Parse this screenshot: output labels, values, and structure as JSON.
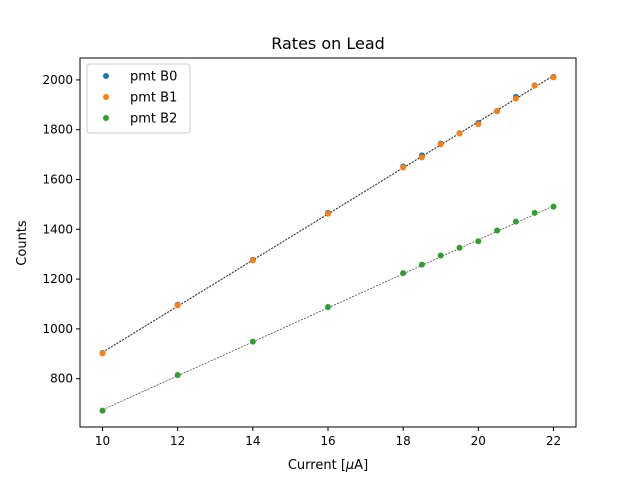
{
  "chart_data": {
    "type": "scatter",
    "title": "Rates on Lead",
    "xlabel_prefix": "Current [",
    "xlabel_mu": "μ",
    "xlabel_suffix": "A]",
    "ylabel": "Counts",
    "xlim": [
      9.4,
      22.6
    ],
    "ylim": [
      606,
      2088
    ],
    "xticks": [
      10,
      12,
      14,
      16,
      18,
      20,
      22
    ],
    "yticks": [
      800,
      1000,
      1200,
      1400,
      1600,
      1800,
      2000
    ],
    "grid": false,
    "legend_position": "top-left",
    "x": [
      10,
      12,
      14,
      16,
      18,
      18.5,
      19,
      19.5,
      20,
      20.5,
      21,
      21.5,
      22
    ],
    "series": [
      {
        "name": "pmt B0",
        "color": "#1f77b4",
        "values": [
          903,
          1097,
          1277,
          1466,
          1652,
          1697,
          1744,
          1786,
          1827,
          1875,
          1932,
          1978,
          2012
        ]
      },
      {
        "name": "pmt B1",
        "color": "#ff7f0e",
        "values": [
          901,
          1095,
          1275,
          1463,
          1648,
          1689,
          1741,
          1785,
          1822,
          1874,
          1925,
          1977,
          2010
        ]
      },
      {
        "name": "pmt B2",
        "color": "#2ca02c",
        "values": [
          672,
          815,
          949,
          1088,
          1224,
          1258,
          1295,
          1326,
          1352,
          1395,
          1431,
          1466,
          1491
        ]
      }
    ],
    "fit_lines": [
      {
        "x": [
          10,
          22
        ],
        "y": [
          907,
          2018
        ]
      },
      {
        "x": [
          10,
          22
        ],
        "y": [
          905,
          2016
        ]
      },
      {
        "x": [
          10,
          22
        ],
        "y": [
          675,
          1494
        ]
      }
    ]
  }
}
